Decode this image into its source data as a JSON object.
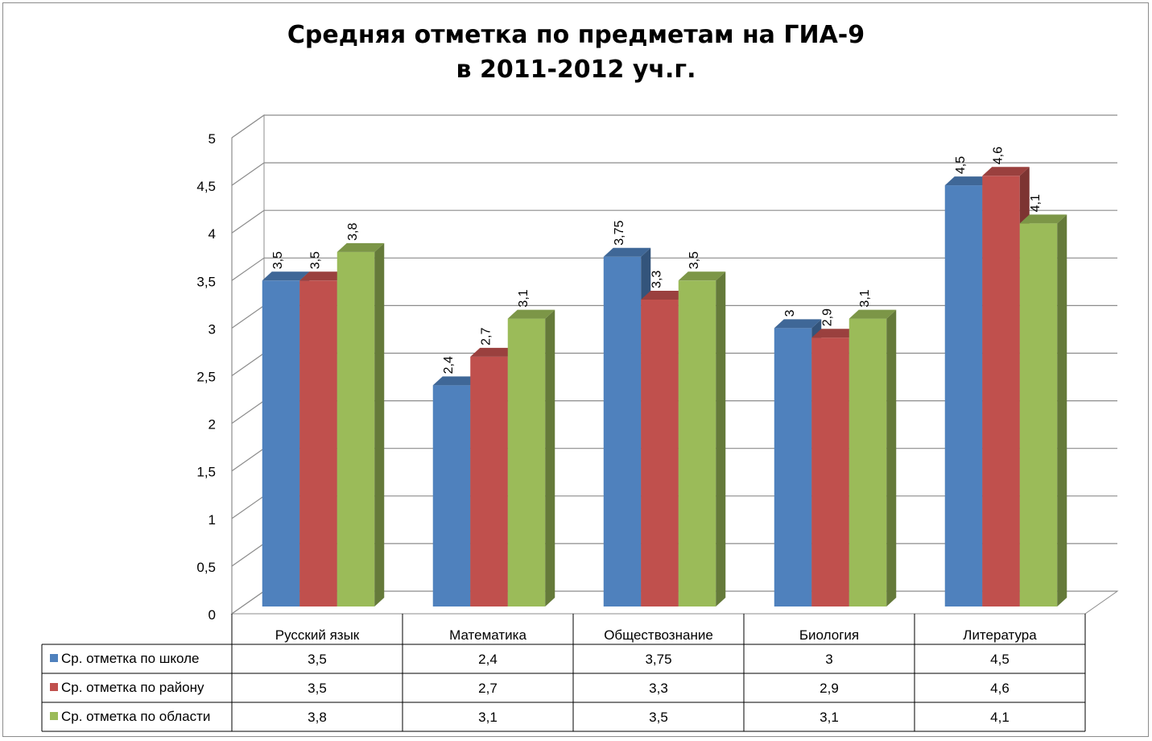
{
  "title_line1": "Средняя отметка по предметам на ГИА-9",
  "title_line2": "в 2011-2012 уч.г.",
  "chart_data": {
    "type": "bar",
    "title": "Средняя отметка по предметам на ГИА-9 в 2011-2012 уч.г.",
    "categories": [
      "Русский язык",
      "Математика",
      "Обществознание",
      "Биология",
      "Литература"
    ],
    "series": [
      {
        "name": "Ср. отметка по школе",
        "values": [
          3.5,
          2.4,
          3.75,
          3,
          4.5
        ],
        "labels": [
          "3,5",
          "2,4",
          "3,75",
          "3",
          "4,5"
        ],
        "color": "#4f81bd"
      },
      {
        "name": "Ср. отметка по району",
        "values": [
          3.5,
          2.7,
          3.3,
          2.9,
          4.6
        ],
        "labels": [
          "3,5",
          "2,7",
          "3,3",
          "2,9",
          "4,6"
        ],
        "color": "#c0504d"
      },
      {
        "name": "Ср. отметка по области",
        "values": [
          3.8,
          3.1,
          3.5,
          3.1,
          4.1
        ],
        "labels": [
          "3,8",
          "3,1",
          "3,5",
          "3,1",
          "4,1"
        ],
        "color": "#9bbb59"
      }
    ],
    "ylim": [
      0,
      5
    ],
    "yticks": [
      0,
      0.5,
      1,
      1.5,
      2,
      2.5,
      3,
      3.5,
      4,
      4.5,
      5
    ],
    "ytick_labels": [
      "0",
      "0,5",
      "1",
      "1,5",
      "2",
      "2,5",
      "3",
      "3,5",
      "4",
      "4,5",
      "5"
    ],
    "grid": true,
    "legend": "data-table",
    "data_table": true
  }
}
